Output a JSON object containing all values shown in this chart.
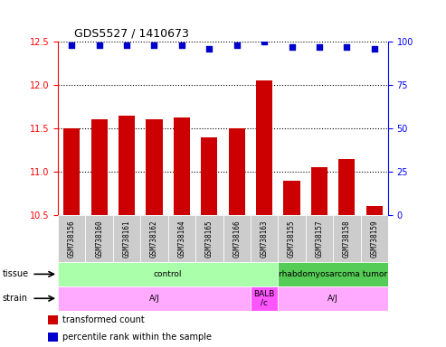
{
  "title": "GDS5527 / 1410673",
  "samples": [
    "GSM738156",
    "GSM738160",
    "GSM738161",
    "GSM738162",
    "GSM738164",
    "GSM738165",
    "GSM738166",
    "GSM738163",
    "GSM738155",
    "GSM738157",
    "GSM738158",
    "GSM738159"
  ],
  "bar_values": [
    11.5,
    11.6,
    11.65,
    11.6,
    11.63,
    11.4,
    11.5,
    12.05,
    10.9,
    11.05,
    11.15,
    10.6
  ],
  "dot_values": [
    98,
    98,
    98,
    98,
    98,
    96,
    98,
    100,
    97,
    97,
    97,
    96
  ],
  "bar_color": "#cc0000",
  "dot_color": "#0000cc",
  "ylim_left": [
    10.5,
    12.5
  ],
  "ylim_right": [
    0,
    100
  ],
  "yticks_left": [
    10.5,
    11.0,
    11.5,
    12.0,
    12.5
  ],
  "yticks_right": [
    0,
    25,
    50,
    75,
    100
  ],
  "tissue_labels": [
    {
      "text": "control",
      "start": 0,
      "end": 7,
      "color": "#aaffaa"
    },
    {
      "text": "rhabdomyosarcoma tumor",
      "start": 8,
      "end": 11,
      "color": "#55cc55"
    }
  ],
  "strain_labels": [
    {
      "text": "A/J",
      "start": 0,
      "end": 6,
      "color": "#ffaaff"
    },
    {
      "text": "BALB\n/c",
      "start": 7,
      "end": 7,
      "color": "#ff55ff"
    },
    {
      "text": "A/J",
      "start": 8,
      "end": 11,
      "color": "#ffaaff"
    }
  ],
  "legend_items": [
    {
      "color": "#cc0000",
      "label": "transformed count"
    },
    {
      "color": "#0000cc",
      "label": "percentile rank within the sample"
    }
  ],
  "background_color": "#ffffff",
  "grid_color": "#000000",
  "tick_label_area_color": "#cccccc"
}
